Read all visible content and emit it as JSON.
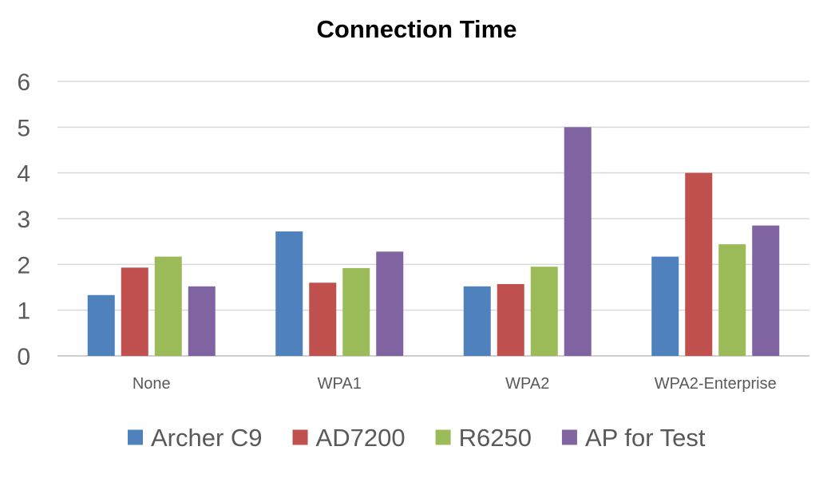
{
  "chart_data": {
    "type": "bar",
    "title": "Connection Time",
    "xlabel": "",
    "ylabel": "",
    "categories": [
      "None",
      "WPA1",
      "WPA2",
      "WPA2-Enterprise"
    ],
    "ylim": [
      0,
      6
    ],
    "yticks": [
      0,
      1,
      2,
      3,
      4,
      5,
      6
    ],
    "grid": true,
    "legend_position": "bottom",
    "series": [
      {
        "name": "Archer C9",
        "color": "#4f81bd",
        "values": [
          1.33,
          2.72,
          1.52,
          2.17
        ]
      },
      {
        "name": "AD7200",
        "color": "#c0504d",
        "values": [
          1.93,
          1.6,
          1.57,
          4.0
        ]
      },
      {
        "name": "R6250",
        "color": "#9bbb59",
        "values": [
          2.17,
          1.92,
          1.95,
          2.44
        ]
      },
      {
        "name": "AP for Test",
        "color": "#8064a2",
        "values": [
          1.52,
          2.28,
          5.0,
          2.85
        ]
      }
    ]
  }
}
